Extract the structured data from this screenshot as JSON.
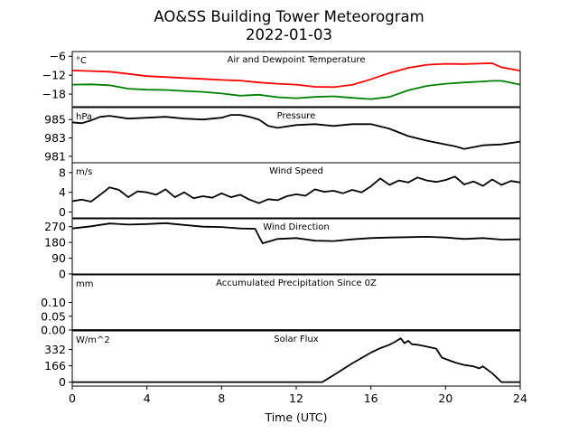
{
  "title_line1": "AO&SS Building Tower Meteorogram",
  "title_line2": "2022-01-03",
  "xlabel": "Time (UTC)",
  "x_ticks": [
    "0",
    "4",
    "8",
    "12",
    "16",
    "20",
    "24"
  ],
  "chart_data": [
    {
      "type": "line",
      "title": "Air and Dewpoint Temperature",
      "unit": "°C",
      "ylim": [
        -22,
        -4.5
      ],
      "yticks": [
        -6,
        -12,
        -18
      ],
      "ytick_labels": [
        "−6",
        "−12",
        "−18"
      ],
      "x": [
        0,
        1,
        2,
        3,
        4,
        5,
        6,
        7,
        8,
        9,
        10,
        11,
        12,
        13,
        14,
        15,
        16,
        17,
        18,
        19,
        20,
        21,
        22,
        22.5,
        23,
        24
      ],
      "series": [
        {
          "color": "#ff0000",
          "values": [
            -10.5,
            -10.7,
            -10.9,
            -11.6,
            -12.3,
            -12.6,
            -12.9,
            -13.2,
            -13.5,
            -13.7,
            -14.3,
            -14.7,
            -15.0,
            -15.7,
            -15.8,
            -15.1,
            -13.3,
            -11.3,
            -9.7,
            -8.7,
            -8.4,
            -8.5,
            -8.3,
            -8.2,
            -9.5,
            -10.6
          ]
        },
        {
          "color": "#008000",
          "values": [
            -15.0,
            -14.9,
            -15.2,
            -16.3,
            -16.6,
            -16.7,
            -17.0,
            -17.3,
            -17.8,
            -18.5,
            -18.2,
            -19.0,
            -19.3,
            -18.9,
            -18.7,
            -19.2,
            -19.6,
            -18.9,
            -16.8,
            -15.4,
            -14.7,
            -14.3,
            -14.0,
            -13.8,
            -13.8,
            -15.0
          ]
        }
      ]
    },
    {
      "type": "line",
      "title": "Pressure",
      "unit": "hPa",
      "ylim": [
        980.3,
        986.3
      ],
      "yticks": [
        985,
        983,
        981
      ],
      "ytick_labels": [
        "985",
        "983",
        "981"
      ],
      "x": [
        0,
        0.5,
        1,
        1.5,
        2,
        3,
        4,
        5,
        6,
        7,
        8,
        8.5,
        9,
        9.5,
        10,
        10.5,
        11,
        12,
        13,
        14,
        15,
        16,
        17,
        18,
        19,
        20,
        20.5,
        21,
        22,
        23,
        24
      ],
      "series": [
        {
          "color": "#000000",
          "values": [
            984.7,
            984.6,
            984.9,
            985.3,
            985.4,
            985.1,
            985.2,
            985.3,
            985.1,
            985.0,
            985.2,
            985.5,
            985.5,
            985.3,
            985.0,
            984.3,
            984.1,
            984.4,
            984.5,
            984.3,
            984.5,
            984.5,
            984.0,
            983.2,
            982.7,
            982.3,
            982.1,
            981.8,
            982.2,
            982.3,
            982.6
          ]
        }
      ]
    },
    {
      "type": "line",
      "title": "Wind Speed",
      "unit": "m/s",
      "ylim": [
        -1.2,
        10
      ],
      "yticks": [
        8,
        4,
        0
      ],
      "ytick_labels": [
        "8",
        "4",
        "0"
      ],
      "x": [
        0,
        0.5,
        1,
        1.5,
        2,
        2.5,
        3,
        3.5,
        4,
        4.5,
        5,
        5.5,
        6,
        6.5,
        7,
        7.5,
        8,
        8.5,
        9,
        9.5,
        10,
        10.5,
        11,
        11.5,
        12,
        12.5,
        13,
        13.5,
        14,
        14.5,
        15,
        15.5,
        16,
        16.5,
        17,
        17.5,
        18,
        18.5,
        19,
        19.5,
        20,
        20.5,
        21,
        21.5,
        22,
        22.5,
        23,
        23.5,
        24
      ],
      "series": [
        {
          "color": "#000000",
          "values": [
            2.2,
            2.5,
            2.1,
            3.5,
            5.0,
            4.5,
            3.0,
            4.2,
            4.0,
            3.5,
            4.6,
            3.0,
            4.0,
            2.8,
            3.2,
            2.9,
            3.8,
            3.0,
            3.5,
            2.5,
            1.8,
            2.6,
            2.4,
            3.2,
            3.6,
            3.3,
            4.6,
            4.1,
            4.3,
            3.8,
            4.5,
            4.0,
            5.2,
            6.8,
            5.5,
            6.4,
            6.0,
            7.0,
            6.4,
            6.1,
            6.5,
            7.2,
            5.6,
            6.2,
            5.3,
            6.6,
            5.5,
            6.3,
            6.0
          ]
        }
      ]
    },
    {
      "type": "line",
      "title": "Wind Direction",
      "unit": "",
      "ylim": [
        0,
        315
      ],
      "yticks": [
        270,
        180,
        90,
        0
      ],
      "ytick_labels": [
        "270",
        "180",
        "90",
        "0"
      ],
      "x": [
        0,
        1,
        2,
        3,
        4,
        5,
        6,
        7,
        8,
        9,
        9.8,
        10,
        10.2,
        11,
        12,
        13,
        14,
        15,
        16,
        17,
        18,
        19,
        20,
        21,
        22,
        23,
        24
      ],
      "series": [
        {
          "color": "#000000",
          "values": [
            260,
            272,
            288,
            282,
            285,
            290,
            280,
            270,
            268,
            260,
            258,
            215,
            175,
            200,
            205,
            190,
            188,
            198,
            205,
            208,
            210,
            212,
            208,
            200,
            205,
            196,
            198
          ]
        }
      ]
    },
    {
      "type": "line",
      "title": "Accumulated Precipitation Since 0Z",
      "unit": "mm",
      "ylim": [
        0,
        0.2
      ],
      "yticks": [
        0.1,
        0.05,
        0.0
      ],
      "ytick_labels": [
        "0.10",
        "0.05",
        "0.00"
      ],
      "x": [
        0,
        24
      ],
      "series": [
        {
          "color": "#000000",
          "values": [
            0,
            0
          ]
        }
      ]
    },
    {
      "type": "line",
      "title": "Solar Flux",
      "unit": "W/m^2",
      "ylim": [
        -40,
        520
      ],
      "yticks": [
        332,
        166,
        0
      ],
      "ytick_labels": [
        "332",
        "166",
        "0"
      ],
      "x": [
        0,
        13.4,
        14,
        15,
        16,
        16.5,
        17,
        17.3,
        17.6,
        17.8,
        18,
        18.2,
        18.5,
        19,
        19.5,
        19.7,
        19.8,
        20,
        20.5,
        21,
        21.5,
        21.8,
        22,
        22.5,
        23,
        24
      ],
      "series": [
        {
          "color": "#000000",
          "values": [
            0,
            0,
            70,
            190,
            300,
            345,
            380,
            410,
            445,
            395,
            420,
            385,
            380,
            360,
            340,
            280,
            250,
            235,
            200,
            175,
            160,
            140,
            160,
            90,
            0,
            0
          ]
        }
      ]
    }
  ]
}
